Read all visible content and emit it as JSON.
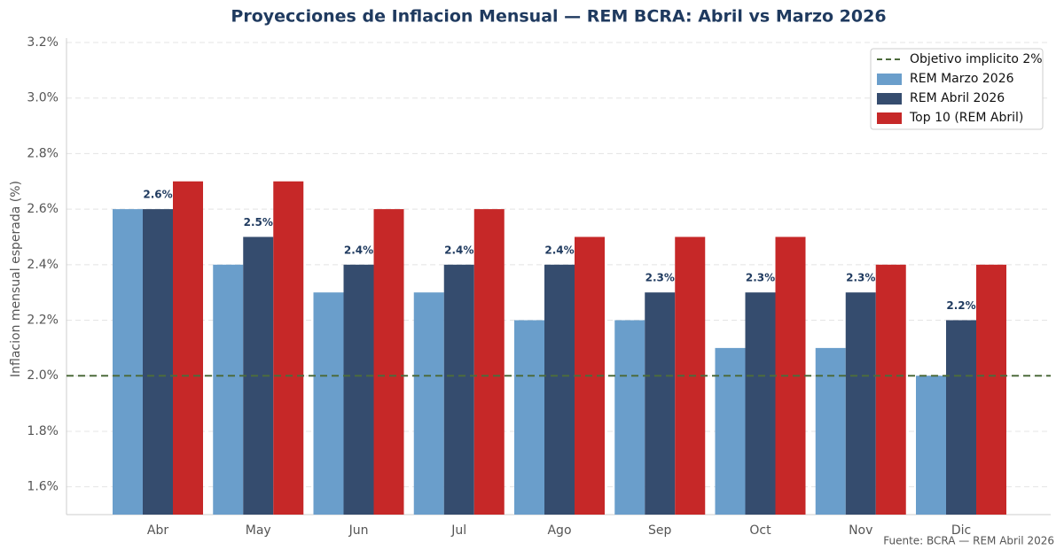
{
  "chart_data": {
    "type": "bar",
    "title": "Proyecciones de Inflacion Mensual — REM BCRA: Abril vs Marzo 2026",
    "y_label": "Inflacion mensual esperada (%)",
    "source": "Fuente: BCRA — REM Abril 2026",
    "categories": [
      "Abr",
      "May",
      "Jun",
      "Jul",
      "Ago",
      "Sep",
      "Oct",
      "Nov",
      "Dic"
    ],
    "series": [
      {
        "name": "REM Marzo 2026",
        "color": "#6a9ecb",
        "values": [
          2.6,
          2.4,
          2.3,
          2.3,
          2.2,
          2.2,
          2.1,
          2.1,
          2.0
        ]
      },
      {
        "name": "REM Abril 2026",
        "color": "#354c6e",
        "values": [
          2.6,
          2.5,
          2.4,
          2.4,
          2.4,
          2.3,
          2.3,
          2.3,
          2.2
        ],
        "value_labels": [
          "2.6%",
          "2.5%",
          "2.4%",
          "2.4%",
          "2.4%",
          "2.3%",
          "2.3%",
          "2.3%",
          "2.2%"
        ]
      },
      {
        "name": "Top 10 (REM Abril)",
        "color": "#c62828",
        "values": [
          2.7,
          2.7,
          2.6,
          2.6,
          2.5,
          2.5,
          2.5,
          2.4,
          2.4
        ]
      }
    ],
    "reference_line": {
      "name": "Objetivo implicito 2%",
      "value": 2.0,
      "color": "#4d6b3c"
    },
    "ylim": [
      1.5,
      3.2
    ],
    "yticks": [
      {
        "value": 1.6,
        "label": "1.6%"
      },
      {
        "value": 1.8,
        "label": "1.8%"
      },
      {
        "value": 2.0,
        "label": "2.0%"
      },
      {
        "value": 2.2,
        "label": "2.2%"
      },
      {
        "value": 2.4,
        "label": "2.4%"
      },
      {
        "value": 2.6,
        "label": "2.6%"
      },
      {
        "value": 2.8,
        "label": "2.8%"
      },
      {
        "value": 3.0,
        "label": "3.0%"
      },
      {
        "value": 3.2,
        "label": "3.2%"
      }
    ],
    "grid": true,
    "legend": "upper-right"
  }
}
